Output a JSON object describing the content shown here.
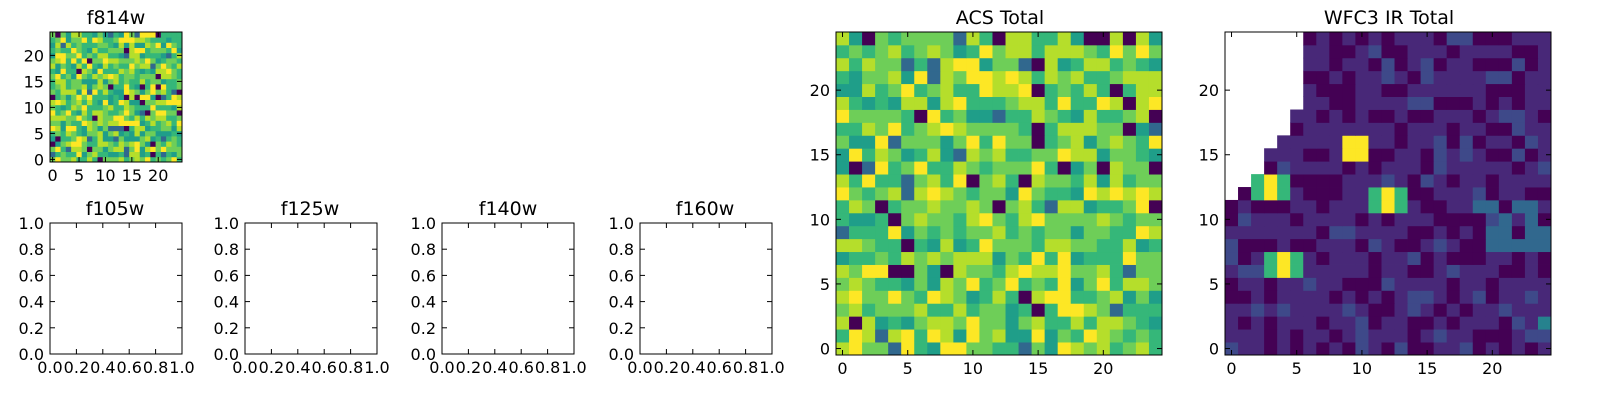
{
  "chart_data": [
    {
      "type": "heatmap",
      "title": "f814w",
      "xlim": [
        -0.5,
        24.5
      ],
      "ylim": [
        -0.5,
        24.5
      ],
      "xticks": [
        0,
        5,
        10,
        15,
        20
      ],
      "yticks": [
        0,
        5,
        10,
        15,
        20
      ],
      "colormap": "viridis",
      "grid": false,
      "data": "random"
    },
    {
      "type": "empty",
      "title": "f105w",
      "xlim": [
        0,
        1
      ],
      "ylim": [
        0,
        1
      ],
      "xticks": [
        "0.0",
        "0.2",
        "0.4",
        "0.6",
        "0.8",
        "1.0"
      ],
      "yticks": [
        "0.0",
        "0.2",
        "0.4",
        "0.6",
        "0.8",
        "1.0"
      ]
    },
    {
      "type": "empty",
      "title": "f125w",
      "xlim": [
        0,
        1
      ],
      "ylim": [
        0,
        1
      ],
      "xticks": [
        "0.0",
        "0.2",
        "0.4",
        "0.6",
        "0.8",
        "1.0"
      ],
      "yticks": [
        "0.0",
        "0.2",
        "0.4",
        "0.6",
        "0.8",
        "1.0"
      ]
    },
    {
      "type": "empty",
      "title": "f140w",
      "xlim": [
        0,
        1
      ],
      "ylim": [
        0,
        1
      ],
      "xticks": [
        "0.0",
        "0.2",
        "0.4",
        "0.6",
        "0.8",
        "1.0"
      ],
      "yticks": [
        "0.0",
        "0.2",
        "0.4",
        "0.6",
        "0.8",
        "1.0"
      ]
    },
    {
      "type": "empty",
      "title": "f160w",
      "xlim": [
        0,
        1
      ],
      "ylim": [
        0,
        1
      ],
      "xticks": [
        "0.0",
        "0.2",
        "0.4",
        "0.6",
        "0.8",
        "1.0"
      ],
      "yticks": [
        "0.0",
        "0.2",
        "0.4",
        "0.6",
        "0.8",
        "1.0"
      ]
    },
    {
      "type": "heatmap",
      "title": "ACS Total",
      "xlim": [
        -0.5,
        24.5
      ],
      "ylim": [
        -0.5,
        24.5
      ],
      "xticks": [
        0,
        5,
        10,
        15,
        20
      ],
      "yticks": [
        0,
        5,
        10,
        15,
        20
      ],
      "colormap": "viridis",
      "grid": false,
      "data": "random"
    },
    {
      "type": "heatmap",
      "title": "WFC3 IR Total",
      "xlim": [
        -0.5,
        24.5
      ],
      "ylim": [
        -0.5,
        24.5
      ],
      "xticks": [
        0,
        5,
        10,
        15,
        20
      ],
      "yticks": [
        0,
        5,
        10,
        15,
        20
      ],
      "colormap": "viridis",
      "grid": false,
      "hotspots": [
        [
          3,
          12.5
        ],
        [
          9.5,
          15.5
        ],
        [
          12,
          11.5
        ],
        [
          4,
          6.5
        ]
      ],
      "masked_corner": "top-left"
    }
  ],
  "viridis": [
    "#440154",
    "#482878",
    "#3e4989",
    "#31688e",
    "#26828e",
    "#1f9e89",
    "#35b779",
    "#6ece58",
    "#b5de2b",
    "#fde725"
  ]
}
